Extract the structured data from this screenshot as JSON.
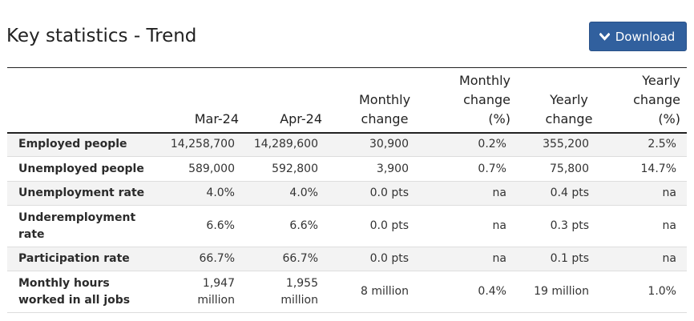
{
  "header": {
    "title": "Key statistics - Trend",
    "download_label": "Download"
  },
  "table": {
    "columns": [
      "",
      "Mar-24",
      "Apr-24",
      "Monthly change",
      "Monthly change (%)",
      "Yearly change",
      "Yearly change (%)"
    ],
    "rows": [
      {
        "label": "Employed people",
        "cells": [
          "14,258,700",
          "14,289,600",
          "30,900",
          "0.2%",
          "355,200",
          "2.5%"
        ]
      },
      {
        "label": "Unemployed people",
        "cells": [
          "589,000",
          "592,800",
          "3,900",
          "0.7%",
          "75,800",
          "14.7%"
        ]
      },
      {
        "label": "Unemployment rate",
        "cells": [
          "4.0%",
          "4.0%",
          "0.0 pts",
          "na",
          "0.4 pts",
          "na"
        ]
      },
      {
        "label": "Underemployment rate",
        "cells": [
          "6.6%",
          "6.6%",
          "0.0 pts",
          "na",
          "0.3 pts",
          "na"
        ]
      },
      {
        "label": "Participation rate",
        "cells": [
          "66.7%",
          "66.7%",
          "0.0 pts",
          "na",
          "0.1 pts",
          "na"
        ]
      },
      {
        "label": "Monthly hours worked in all jobs",
        "cells": [
          "1,947 million",
          "1,955 million",
          "8 million",
          "0.4%",
          "19 million",
          "1.0%"
        ]
      }
    ]
  },
  "colors": {
    "button_bg": "#31609e",
    "row_stripe": "#f3f3f3",
    "rule": "#222222"
  },
  "icons": {
    "download": "chevron-down-icon"
  }
}
